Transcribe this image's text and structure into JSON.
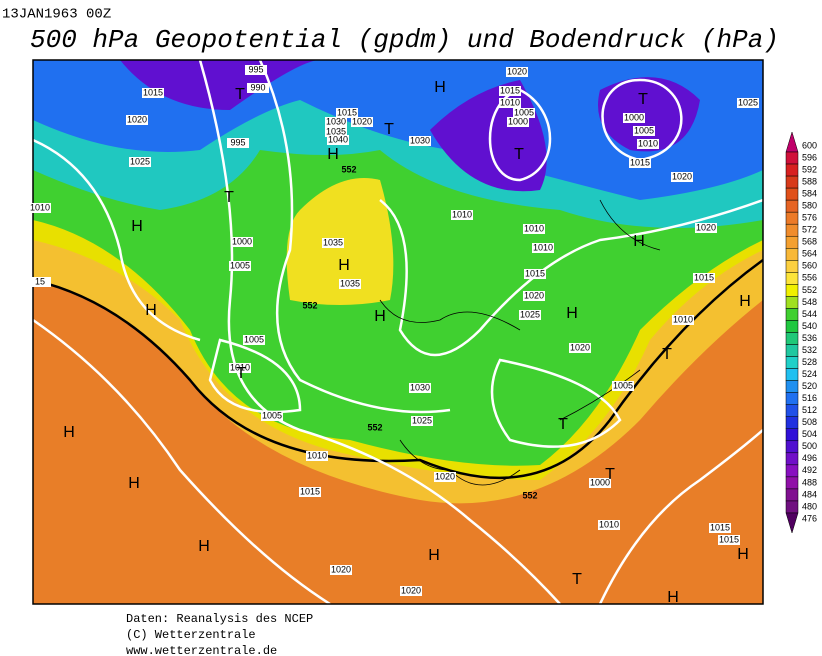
{
  "header": {
    "date": "13JAN1963 00Z",
    "title": "500 hPa Geopotential (gpdm) und Bodendruck (hPa)"
  },
  "legend": {
    "values": [
      600,
      596,
      592,
      588,
      584,
      580,
      576,
      572,
      568,
      564,
      560,
      556,
      552,
      548,
      544,
      540,
      536,
      532,
      528,
      524,
      520,
      516,
      512,
      508,
      504,
      500,
      496,
      492,
      488,
      484,
      480,
      476
    ],
    "colors": [
      "#c0006a",
      "#d0103a",
      "#d82020",
      "#d83a1a",
      "#e0501a",
      "#e66424",
      "#ec7a28",
      "#f08c2c",
      "#f4a030",
      "#f8b838",
      "#fcd040",
      "#fce43a",
      "#f0f000",
      "#a0e020",
      "#40d030",
      "#20c840",
      "#20c878",
      "#20c8a0",
      "#20d0c8",
      "#20c0f0",
      "#2090f0",
      "#2070f0",
      "#2050e8",
      "#2030e0",
      "#3010d8",
      "#5010d0",
      "#7010c8",
      "#8810c0",
      "#9010a8",
      "#801090",
      "#701080",
      "#500060"
    ]
  },
  "map": {
    "pressure_labels": [
      "995",
      "990",
      "1015",
      "1020",
      "995",
      "1025",
      "1010",
      "1000",
      "1005",
      "15",
      "1015",
      "1030",
      "1020",
      "1035",
      "1040",
      "1030",
      "1020",
      "1015",
      "1010",
      "1005",
      "1000",
      "1000",
      "1005",
      "1010",
      "1015",
      "1020",
      "1025",
      "1020",
      "1035",
      "1035",
      "1015",
      "1010",
      "1010",
      "1010",
      "1010",
      "1015",
      "1020",
      "1025",
      "1020",
      "1005",
      "1010",
      "1005",
      "1030",
      "1025",
      "1010",
      "1015",
      "1020",
      "1005",
      "1000",
      "1010",
      "1015",
      "1015",
      "1020",
      "1020"
    ],
    "contour_labels": [
      "552",
      "552",
      "552",
      "552"
    ],
    "centers": [
      "T",
      "H",
      "T",
      "T",
      "T",
      "H",
      "T",
      "H",
      "H",
      "H",
      "H",
      "H",
      "H",
      "H",
      "T",
      "T",
      "T",
      "T",
      "H",
      "H",
      "H",
      "H",
      "T",
      "H",
      "H"
    ]
  },
  "footer": {
    "lines": [
      "Daten: Reanalysis des NCEP",
      "(C) Wetterzentrale",
      "www.wetterzentrale.de"
    ]
  }
}
